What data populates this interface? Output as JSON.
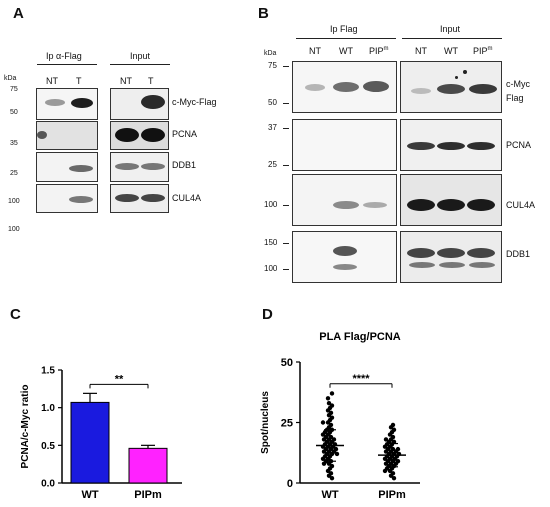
{
  "panel_a": {
    "letter": "A",
    "ip_label": "Ip  α-Flag",
    "input_label": "Input",
    "kda": "kDa",
    "lanes_ip": [
      "NT",
      "T"
    ],
    "lanes_input": [
      "NT",
      "T"
    ],
    "mw": [
      "75",
      "50",
      "35",
      "25",
      "100",
      "100"
    ],
    "rows": [
      "c-Myc-Flag",
      "PCNA",
      "DDB1",
      "CUL4A"
    ]
  },
  "panel_b": {
    "letter": "B",
    "ip_label": "Ip Flag",
    "input_label": "Input",
    "kda": "kDa",
    "lanes_ip": [
      "NT",
      "WT",
      "PIP"
    ],
    "lanes_input": [
      "NT",
      "WT",
      "PIP"
    ],
    "pip_sup": "m",
    "mw": [
      "75",
      "50",
      "37",
      "25",
      "100",
      "150",
      "100"
    ],
    "rows": [
      "c-Myc",
      "Flag",
      "PCNA",
      "CUL4A",
      "DDB1"
    ]
  },
  "panel_c": {
    "letter": "C",
    "significance": "**",
    "chart_data": {
      "type": "bar",
      "categories": [
        "WT",
        "PIPm"
      ],
      "values": [
        1.07,
        0.46
      ],
      "errors": [
        0.12,
        0.04
      ],
      "colors": [
        "#1a1adf",
        "#ff22ff"
      ],
      "ylabel": "PCNA/c-Myc ratio",
      "ylim": [
        0.0,
        1.5
      ],
      "yticks": [
        "0.0",
        "0.5",
        "1.0",
        "1.5"
      ]
    }
  },
  "panel_d": {
    "letter": "D",
    "significance": "****",
    "chart_data": {
      "type": "scatter",
      "title": "PLA Flag/PCNA",
      "ylabel": "Spot/nucleus",
      "categories": [
        "WT",
        "PIPm"
      ],
      "ylim": [
        0,
        50
      ],
      "yticks": [
        "0",
        "25",
        "50"
      ],
      "means": [
        15.5,
        11.5
      ],
      "sd": [
        6.5,
        4.8
      ],
      "series": [
        {
          "values": [
            37,
            35,
            33,
            32,
            31,
            30,
            29,
            28,
            27,
            26,
            25,
            25,
            24,
            23,
            22,
            22,
            21,
            21,
            20,
            20,
            19,
            19,
            18,
            18,
            18,
            17,
            17,
            16,
            16,
            16,
            15,
            15,
            15,
            14,
            14,
            14,
            13,
            13,
            13,
            12,
            12,
            12,
            11,
            11,
            10,
            10,
            9,
            9,
            8,
            8,
            7,
            6,
            5,
            4,
            3,
            2
          ]
        },
        {
          "values": [
            24,
            23,
            22,
            21,
            20,
            19,
            18,
            18,
            17,
            17,
            16,
            16,
            15,
            15,
            14,
            14,
            14,
            13,
            13,
            13,
            12,
            12,
            12,
            11,
            11,
            11,
            10,
            10,
            10,
            9,
            9,
            9,
            8,
            8,
            8,
            7,
            7,
            6,
            6,
            5,
            5,
            4,
            3,
            2
          ]
        }
      ]
    }
  }
}
